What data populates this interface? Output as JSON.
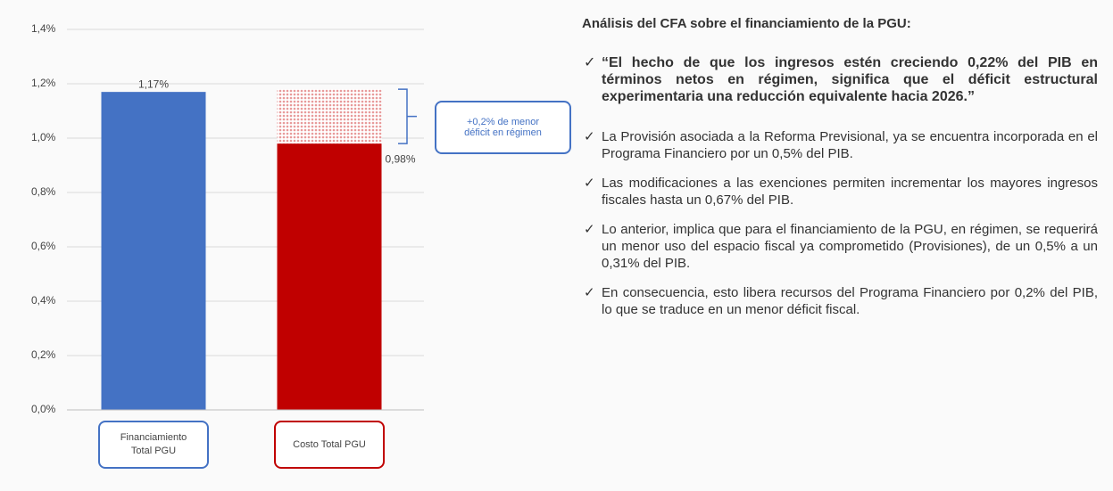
{
  "chart_data": {
    "type": "bar",
    "categories": [
      "Financiamiento Total PGU",
      "Costo Total PGU"
    ],
    "values": [
      1.17,
      0.98
    ],
    "value_labels": [
      "1,17%",
      "0,98%"
    ],
    "colors": [
      "#4472c4",
      "#c00000"
    ],
    "category_border_colors": [
      "#4472c4",
      "#c00000"
    ],
    "annotation": {
      "text": "+0,2% de menor déficit en régimen",
      "value": 0.2,
      "color": "#f2b8b8"
    },
    "ylim": [
      0,
      1.4
    ],
    "yticks": [
      {
        "value": 0,
        "label": "0,0%"
      },
      {
        "value": 0.2,
        "label": "0,2%"
      },
      {
        "value": 0.4,
        "label": "0,4%"
      },
      {
        "value": 0.6,
        "label": "0,6%"
      },
      {
        "value": 0.8,
        "label": "0,8%"
      },
      {
        "value": 1.0,
        "label": "1,0%"
      },
      {
        "value": 1.2,
        "label": "1,2%"
      },
      {
        "value": 1.4,
        "label": "1,4%"
      }
    ],
    "grid": true
  },
  "panel": {
    "heading": "Análisis del CFA sobre el financiamiento de la PGU:",
    "bullets": [
      "“El hecho de que los ingresos estén creciendo 0,22% del PIB en términos netos en régimen, significa que el déficit estructural experimentaria una reducción equivalente hacia 2026.”",
      "La Provisión asociada a la Reforma Previsional, ya se encuentra incorporada en el Programa Financiero por un 0,5% del PIB.",
      "Las modificaciones a las exenciones permiten incrementar los mayores ingresos fiscales hasta un 0,67% del PIB.",
      "Lo anterior, implica que para el financiamiento de la PGU, en régimen, se requerirá un menor uso del espacio fiscal ya comprometido (Provisiones), de un 0,5% a un 0,31% del PIB.",
      "En consecuencia, esto libera recursos del Programa Financiero por 0,2% del PIB, lo que se traduce en un menor déficit fiscal."
    ]
  }
}
